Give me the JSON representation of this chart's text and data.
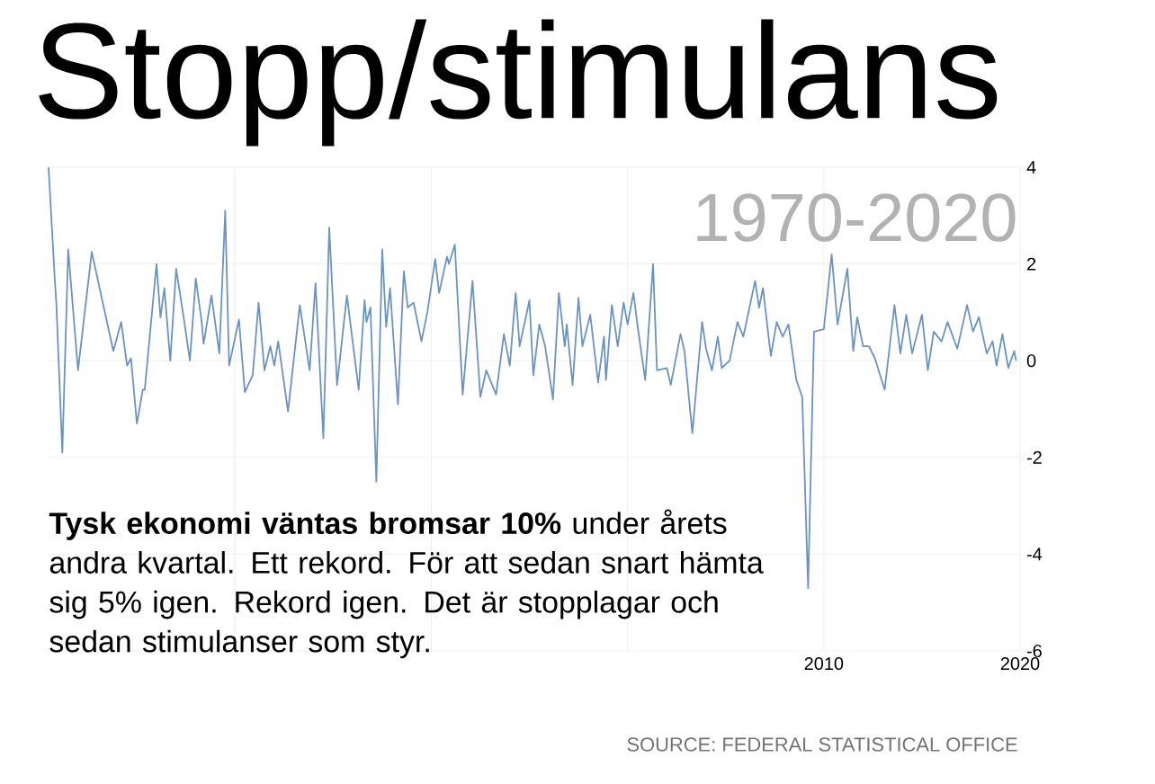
{
  "chart_data": {
    "type": "line",
    "title": "Stopp/stimulans",
    "subtitle": "1970-2020",
    "annotations": [
      "**Tysk ekonomi väntas bromsar 10%** under årets andra kvartal. Ett rekord. För att sedan snart hämta sig 5% igen. Rekord igen. Det är stopplagar och sedan stimulanser som styr.",
      "SOURCE: FEDERAL STATISTICAL OFFICE"
    ],
    "x": [
      1970.5,
      1970.8,
      1970.9,
      1971.2,
      1971.5,
      1972.0,
      1972.7,
      1973.1,
      1973.8,
      1974.2,
      1974.5,
      1974.7,
      1975.0,
      1975.3,
      1975.4,
      1976.0,
      1976.2,
      1976.4,
      1976.7,
      1977.0,
      1977.4,
      1977.7,
      1978.0,
      1978.3,
      1978.4,
      1978.8,
      1979.2,
      1979.5,
      1979.7,
      1980.2,
      1980.5,
      1980.9,
      1981.2,
      1981.5,
      1981.8,
      1982.0,
      1982.2,
      1982.7,
      1983.3,
      1983.8,
      1984.1,
      1984.5,
      1984.8,
      1985.2,
      1985.7,
      1986.3,
      1986.6,
      1986.7,
      1986.9,
      1987.2,
      1987.5,
      1987.7,
      1987.9,
      1988.3,
      1988.6,
      1988.8,
      1989.1,
      1989.5,
      1989.8,
      1990.2,
      1990.4,
      1990.8,
      1990.9,
      1991.2,
      1991.6,
      1992.1,
      1992.5,
      1992.8,
      1993.3,
      1993.7,
      1994.0,
      1994.3,
      1994.5,
      1995.0,
      1995.2,
      1995.5,
      1995.8,
      1996.2,
      1996.5,
      1996.8,
      1996.9,
      1997.2,
      1997.5,
      1997.7,
      1998.1,
      1998.5,
      1998.8,
      1998.9,
      1999.2,
      1999.5,
      1999.8,
      2000.0,
      2000.3,
      2000.5,
      2000.9,
      2001.3,
      2001.5,
      2002.0,
      2002.2,
      2002.7,
      2002.9,
      2003.3,
      2003.8,
      2004.0,
      2004.3,
      2004.6,
      2004.8,
      2005.2,
      2005.6,
      2005.9,
      2006.5,
      2006.7,
      2006.9,
      2007.3,
      2007.6,
      2007.9,
      2008.2,
      2008.6,
      2008.9,
      2009.2,
      2009.5,
      2010.0,
      2010.4,
      2010.7,
      2011.2,
      2011.5,
      2011.7,
      2012.0,
      2012.3,
      2012.6,
      2013.1,
      2013.6,
      2013.9,
      2014.2,
      2014.5,
      2015.0,
      2015.3,
      2015.6,
      2016.0,
      2016.3,
      2016.8,
      2017.3,
      2017.6,
      2017.9,
      2018.3,
      2018.6,
      2018.8,
      2019.1,
      2019.4,
      2019.7,
      2019.8
    ],
    "series": [
      {
        "color": "#6a93c4",
        "values": [
          4.0,
          1.8,
          1.15,
          -1.9,
          2.3,
          -0.2,
          2.25,
          1.5,
          0.2,
          0.8,
          -0.1,
          0.05,
          -1.3,
          -0.6,
          -0.6,
          2.0,
          0.9,
          1.5,
          0.0,
          1.9,
          0.85,
          0.0,
          1.7,
          0.8,
          0.35,
          1.35,
          0.15,
          3.1,
          -0.1,
          0.85,
          -0.65,
          -0.3,
          1.2,
          -0.2,
          0.3,
          -0.1,
          0.4,
          -1.05,
          1.15,
          -0.2,
          1.6,
          -1.6,
          2.75,
          -0.5,
          1.35,
          -0.6,
          1.25,
          0.8,
          1.1,
          -2.5,
          2.3,
          0.7,
          1.5,
          -0.9,
          1.85,
          1.1,
          1.2,
          0.4,
          1.0,
          2.1,
          1.4,
          2.15,
          2.0,
          2.4,
          -0.7,
          1.65,
          -0.75,
          -0.2,
          -0.7,
          0.55,
          -0.1,
          1.4,
          0.3,
          1.25,
          -0.3,
          0.75,
          0.3,
          -0.8,
          1.4,
          0.3,
          0.75,
          -0.5,
          1.3,
          0.3,
          0.95,
          -0.45,
          0.5,
          -0.4,
          1.15,
          0.3,
          1.2,
          0.75,
          1.4,
          0.75,
          -0.4,
          2.0,
          -0.2,
          -0.15,
          -0.5,
          0.55,
          0.2,
          -1.5,
          0.8,
          0.25,
          -0.2,
          0.5,
          -0.15,
          0.0,
          0.8,
          0.5,
          1.65,
          1.1,
          1.5,
          0.1,
          0.8,
          0.5,
          0.75,
          -0.4,
          -0.75,
          -4.7,
          0.6,
          0.65,
          2.2,
          0.75,
          1.9,
          0.2,
          0.9,
          0.3,
          0.3,
          0.05,
          -0.6,
          1.15,
          0.15,
          0.95,
          0.15,
          0.95,
          -0.2,
          0.6,
          0.4,
          0.8,
          0.25,
          1.15,
          0.6,
          0.9,
          0.15,
          0.4,
          -0.1,
          0.55,
          -0.15,
          0.2,
          0.0
        ]
      }
    ],
    "xlim": [
      1970.5,
      2020
    ],
    "ylim": [
      -6,
      4
    ],
    "xticks": [
      {
        "value": 1980,
        "label": null
      },
      {
        "value": 1990,
        "label": null
      },
      {
        "value": 2000,
        "label": null
      },
      2010,
      2020
    ],
    "yticks": [
      -6,
      -4,
      -2,
      0,
      2,
      4
    ],
    "grid": true
  }
}
